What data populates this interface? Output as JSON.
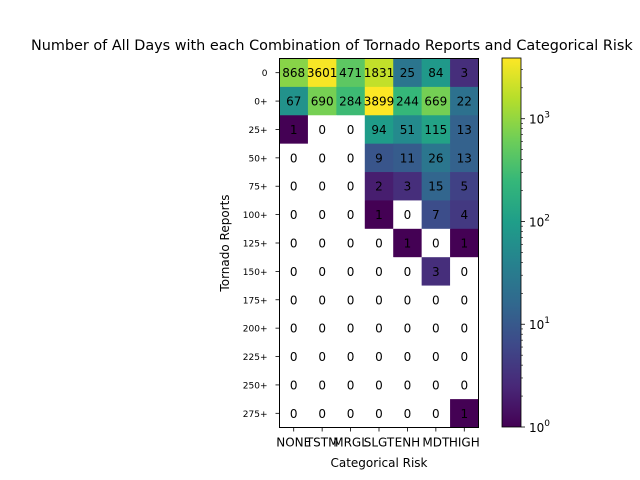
{
  "chart_data": {
    "type": "heatmap",
    "title": "Number of All Days with each Combination of Tornado Reports and Categorical Risk",
    "xlabel": "Categorical Risk",
    "ylabel": "Tornado Reports",
    "x_categories": [
      "NONE",
      "TSTM",
      "MRGL",
      "SLGT",
      "ENH",
      "MDT",
      "HIGH"
    ],
    "y_categories": [
      "0",
      "0+",
      "25+",
      "50+",
      "75+",
      "100+",
      "125+",
      "150+",
      "175+",
      "200+",
      "225+",
      "250+",
      "275+"
    ],
    "values": [
      [
        868,
        3601,
        471,
        1831,
        25,
        84,
        3
      ],
      [
        67,
        690,
        284,
        3899,
        244,
        669,
        22
      ],
      [
        1,
        0,
        0,
        94,
        51,
        115,
        13
      ],
      [
        0,
        0,
        0,
        9,
        11,
        26,
        13
      ],
      [
        0,
        0,
        0,
        2,
        3,
        15,
        5
      ],
      [
        0,
        0,
        0,
        1,
        0,
        7,
        4
      ],
      [
        0,
        0,
        0,
        0,
        1,
        0,
        1
      ],
      [
        0,
        0,
        0,
        0,
        0,
        3,
        0
      ],
      [
        0,
        0,
        0,
        0,
        0,
        0,
        0
      ],
      [
        0,
        0,
        0,
        0,
        0,
        0,
        0
      ],
      [
        0,
        0,
        0,
        0,
        0,
        0,
        0
      ],
      [
        0,
        0,
        0,
        0,
        0,
        0,
        0
      ],
      [
        0,
        0,
        0,
        0,
        0,
        0,
        1
      ]
    ],
    "colorscale": "viridis",
    "color_scale_type": "log",
    "color_range": [
      1,
      3899
    ],
    "zero_cell_color": "#ffffff",
    "colorbar_ticks": [
      {
        "value": 1,
        "base": "10",
        "exp": "0"
      },
      {
        "value": 10,
        "base": "10",
        "exp": "1"
      },
      {
        "value": 100,
        "base": "10",
        "exp": "2"
      },
      {
        "value": 1000,
        "base": "10",
        "exp": "3"
      }
    ]
  }
}
